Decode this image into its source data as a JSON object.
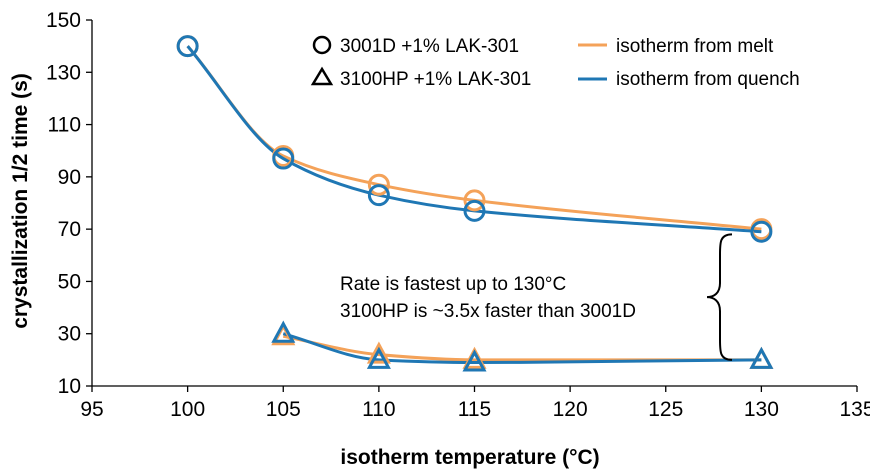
{
  "chart_data": {
    "type": "scatter",
    "title": "",
    "xlabel": "isotherm temperature (°C)",
    "ylabel": "crystallization 1/2 time (s)",
    "xlim": [
      95,
      135
    ],
    "ylim": [
      10,
      150
    ],
    "xticks": [
      95,
      100,
      105,
      110,
      115,
      120,
      125,
      130,
      135
    ],
    "yticks": [
      10,
      30,
      50,
      70,
      90,
      110,
      130,
      150
    ],
    "grid": false,
    "legend_position": "top-right",
    "colors": {
      "melt": "#F4A259",
      "quench": "#1F77B4",
      "black": "#000000"
    },
    "series": [
      {
        "name": "isotherm from melt",
        "marker": "circle",
        "color": "#F4A259",
        "x": [
          100,
          105,
          110,
          115,
          130
        ],
        "y": [
          140,
          98,
          87,
          81,
          70
        ]
      },
      {
        "name": "isotherm from quench",
        "marker": "circle",
        "color": "#1F77B4",
        "x": [
          100,
          105,
          110,
          115,
          130
        ],
        "y": [
          140,
          97,
          83,
          77,
          69
        ]
      },
      {
        "name": "isotherm from melt",
        "marker": "triangle",
        "color": "#F4A259",
        "x": [
          105,
          110,
          115,
          130
        ],
        "y": [
          29,
          22,
          20,
          20
        ]
      },
      {
        "name": "isotherm from quench",
        "marker": "triangle",
        "color": "#1F77B4",
        "x": [
          105,
          110,
          115,
          130
        ],
        "y": [
          30,
          20,
          19,
          20
        ]
      }
    ],
    "legend": {
      "markers": [
        {
          "symbol": "circle",
          "label": "3001D +1% LAK-301"
        },
        {
          "symbol": "triangle",
          "label": "3100HP +1% LAK-301"
        }
      ],
      "lines": [
        {
          "color": "#F4A259",
          "label": "isotherm from melt"
        },
        {
          "color": "#1F77B4",
          "label": "isotherm from quench"
        }
      ]
    },
    "annotation": {
      "lines": [
        "Rate is fastest up to 130°C",
        "3100HP is ~3.5x faster than 3001D"
      ]
    }
  }
}
